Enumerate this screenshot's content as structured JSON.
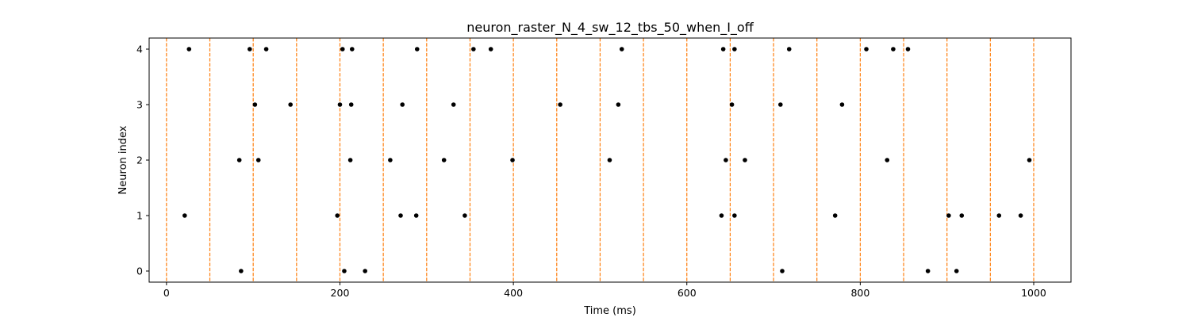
{
  "chart_data": {
    "type": "scatter",
    "title": "neuron_raster_N_4_sw_12_tbs_50_when_I_off",
    "xlabel": "Time (ms)",
    "ylabel": "Neuron index",
    "xlim": [
      -20,
      1043
    ],
    "ylim": [
      -0.2,
      4.2
    ],
    "xticks": [
      0,
      200,
      400,
      600,
      800,
      1000
    ],
    "yticks": [
      0,
      1,
      2,
      3,
      4
    ],
    "grid": false,
    "point_color": "#000000",
    "vline_color": "#ff7f0e",
    "vline_style": "dashed",
    "vlines_x": [
      0,
      50,
      100,
      150,
      200,
      250,
      300,
      350,
      400,
      450,
      500,
      550,
      600,
      650,
      700,
      750,
      800,
      850,
      900,
      950,
      1000
    ],
    "series": [
      {
        "neuron": 0,
        "x": [
          86,
          205,
          229,
          710,
          878,
          911
        ]
      },
      {
        "neuron": 1,
        "x": [
          21,
          197,
          270,
          288,
          344,
          640,
          655,
          771,
          902,
          917,
          960,
          985
        ]
      },
      {
        "neuron": 2,
        "x": [
          84,
          106,
          212,
          258,
          320,
          399,
          511,
          645,
          667,
          831,
          995
        ]
      },
      {
        "neuron": 3,
        "x": [
          102,
          143,
          200,
          213,
          272,
          331,
          454,
          521,
          652,
          708,
          779
        ]
      },
      {
        "neuron": 4,
        "x": [
          26,
          96,
          115,
          203,
          214,
          289,
          354,
          374,
          525,
          642,
          655,
          718,
          807,
          838,
          855
        ]
      }
    ]
  }
}
